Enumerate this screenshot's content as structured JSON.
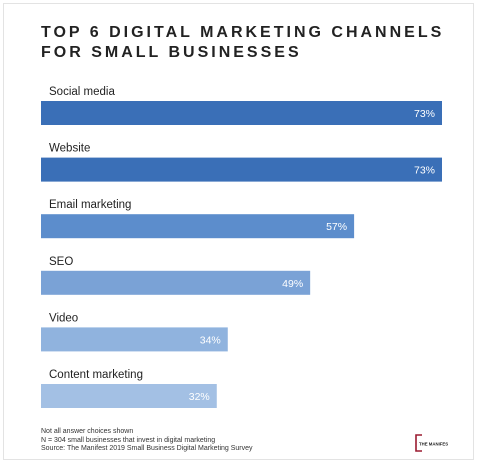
{
  "chart_data": {
    "type": "bar",
    "orientation": "horizontal",
    "title_lines": [
      "TOP 6 DIGITAL MARKETING CHANNELS",
      "FOR SMALL BUSINESSES"
    ],
    "categories": [
      "Social media",
      "Website",
      "Email marketing",
      "SEO",
      "Video",
      "Content marketing"
    ],
    "values": [
      73,
      73,
      57,
      49,
      34,
      32
    ],
    "value_labels": [
      "73%",
      "73%",
      "57%",
      "49%",
      "34%",
      "32%"
    ],
    "colors": [
      "#3a6fb7",
      "#3a6fb7",
      "#5c8dcc",
      "#7aa2d6",
      "#90b3de",
      "#a3c0e4"
    ],
    "xlim": [
      0,
      100
    ],
    "grid": false
  },
  "footer": {
    "lines": [
      "Not all answer choices shown",
      "N = 304 small businesses that invest in digital marketing",
      "Source: The Manifest 2019 Small Business Digital Marketing Survey"
    ]
  },
  "logo": {
    "text": "THE MANIFEST",
    "color": "#9b1b30"
  }
}
